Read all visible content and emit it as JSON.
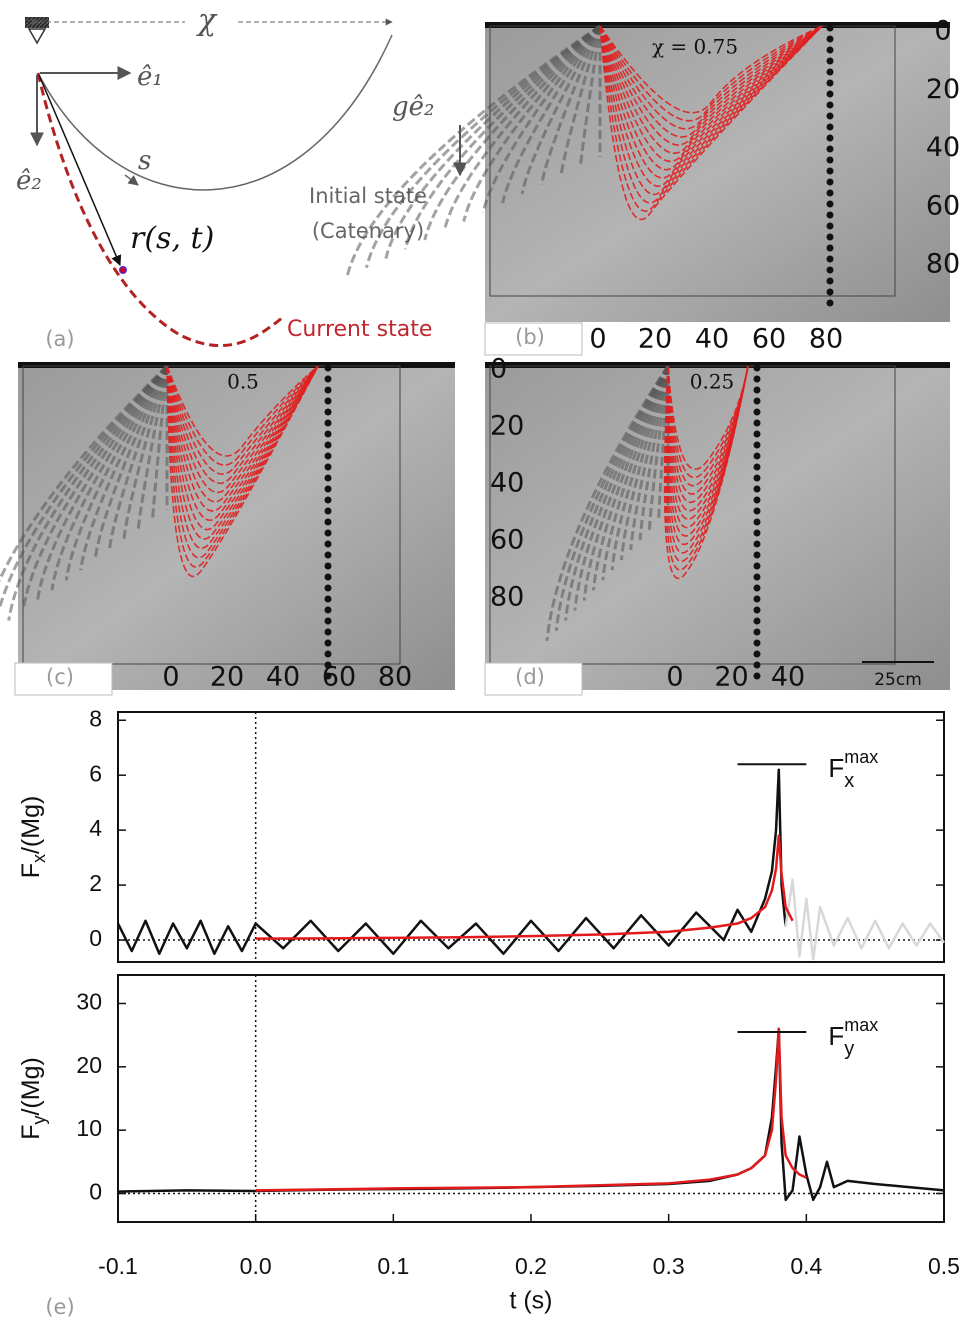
{
  "panel_a": {
    "label": "(a)",
    "chi": "χ",
    "e1": "ê₁",
    "e2": "ê₂",
    "gravity": "gê₂",
    "s": "s",
    "position": "r(s, t)",
    "initial_state": "Initial state",
    "initial_state_note": "(Catenary)",
    "current_state": "Current state"
  },
  "panel_b": {
    "label": "(b)",
    "annotation": "χ = 0.75",
    "xticks": [
      0,
      20,
      40,
      60,
      80
    ],
    "yticks": [
      0,
      20,
      40,
      60,
      80
    ]
  },
  "panel_c": {
    "label": "(c)",
    "annotation": "0.5",
    "xticks": [
      0,
      20,
      40,
      60,
      80
    ]
  },
  "panel_d": {
    "label": "(d)",
    "annotation": "0.25",
    "xticks": [
      0,
      20,
      40
    ],
    "yticks": [
      0,
      20,
      40,
      60,
      80
    ],
    "scale_bar": "25cm"
  },
  "panel_e": {
    "label": "(e)"
  },
  "chart_data": [
    {
      "type": "line",
      "ylabel": {
        "main": "F",
        "sub": "x",
        "rest": "/(Mg)"
      },
      "xlim": [
        -0.1,
        0.5
      ],
      "ylim": [
        -0.8,
        8.3
      ],
      "yticks": [
        0,
        2,
        4,
        6,
        8
      ],
      "vline": 0,
      "hline": 0,
      "series": [
        {
          "color": "#111111",
          "x": [
            -0.1,
            -0.09,
            -0.08,
            -0.07,
            -0.06,
            -0.05,
            -0.04,
            -0.03,
            -0.02,
            -0.01,
            0,
            0.02,
            0.04,
            0.06,
            0.08,
            0.1,
            0.12,
            0.14,
            0.16,
            0.18,
            0.2,
            0.22,
            0.24,
            0.26,
            0.28,
            0.3,
            0.32,
            0.34,
            0.35,
            0.36,
            0.37,
            0.375,
            0.378,
            0.38,
            0.382,
            0.385
          ],
          "values": [
            0.6,
            -0.4,
            0.7,
            -0.5,
            0.6,
            -0.3,
            0.7,
            -0.5,
            0.5,
            -0.4,
            0.6,
            -0.3,
            0.7,
            -0.4,
            0.6,
            -0.5,
            0.7,
            -0.3,
            0.6,
            -0.5,
            0.7,
            -0.4,
            0.8,
            -0.3,
            0.9,
            -0.2,
            1.0,
            0,
            1.1,
            0.3,
            1.5,
            2.5,
            4,
            6.2,
            2,
            0.5
          ]
        },
        {
          "color": "#d8d8d8",
          "x": [
            0.385,
            0.39,
            0.395,
            0.4,
            0.405,
            0.41,
            0.42,
            0.43,
            0.44,
            0.45,
            0.46,
            0.47,
            0.48,
            0.49,
            0.5
          ],
          "values": [
            0.5,
            2.2,
            -0.6,
            1.5,
            -0.7,
            1.2,
            -0.2,
            0.8,
            -0.3,
            0.7,
            -0.3,
            0.6,
            -0.2,
            0.6,
            -0.1
          ]
        },
        {
          "color": "#e31a1c",
          "x": [
            0,
            0.05,
            0.1,
            0.15,
            0.2,
            0.25,
            0.3,
            0.33,
            0.35,
            0.36,
            0.37,
            0.375,
            0.378,
            0.38,
            0.382,
            0.385,
            0.39
          ],
          "values": [
            0.05,
            0.06,
            0.08,
            0.1,
            0.14,
            0.2,
            0.3,
            0.45,
            0.6,
            0.8,
            1.2,
            1.8,
            2.6,
            3.8,
            2.4,
            1.2,
            0.7
          ]
        }
      ],
      "marker": {
        "main": "F",
        "sub": "x",
        "sup": "max",
        "value": 6.4,
        "x_range": [
          0.35,
          0.4
        ]
      }
    },
    {
      "type": "line",
      "ylabel": {
        "main": "F",
        "sub": "y",
        "rest": "/(Mg)"
      },
      "xlabel": "t (s)",
      "xlim": [
        -0.1,
        0.5
      ],
      "ylim": [
        -4.5,
        34.5
      ],
      "xticks": [
        -0.1,
        {
          "value": 0,
          "label": "0.0"
        },
        0.1,
        0.2,
        0.3,
        0.4,
        0.5
      ],
      "yticks": [
        0,
        10,
        20,
        30
      ],
      "vline": 0,
      "hline": 0,
      "series": [
        {
          "color": "#111111",
          "x": [
            -0.1,
            -0.05,
            0,
            0.05,
            0.1,
            0.15,
            0.2,
            0.25,
            0.3,
            0.33,
            0.35,
            0.36,
            0.37,
            0.375,
            0.378,
            0.38,
            0.382,
            0.385,
            0.39,
            0.395,
            0.4,
            0.405,
            0.41,
            0.415,
            0.42,
            0.43,
            0.45,
            0.5
          ],
          "values": [
            0.3,
            0.5,
            0.4,
            0.6,
            0.7,
            0.8,
            1,
            1.2,
            1.5,
            2,
            3,
            4,
            6,
            12,
            20,
            26,
            8,
            -1,
            0.5,
            9,
            3,
            -1,
            1,
            5,
            1,
            2,
            1.5,
            0.5
          ]
        },
        {
          "color": "#e31a1c",
          "x": [
            0,
            0.1,
            0.2,
            0.3,
            0.33,
            0.35,
            0.36,
            0.37,
            0.375,
            0.378,
            0.38,
            0.382,
            0.385,
            0.39,
            0.395,
            0.4
          ],
          "values": [
            0.5,
            0.8,
            1,
            1.6,
            2.2,
            3,
            4,
            6,
            10,
            18,
            26,
            12,
            6,
            4,
            3,
            2.5
          ]
        }
      ],
      "marker": {
        "main": "F",
        "sub": "y",
        "sup": "max",
        "value": 25.5,
        "x_range": [
          0.35,
          0.4
        ]
      }
    }
  ]
}
